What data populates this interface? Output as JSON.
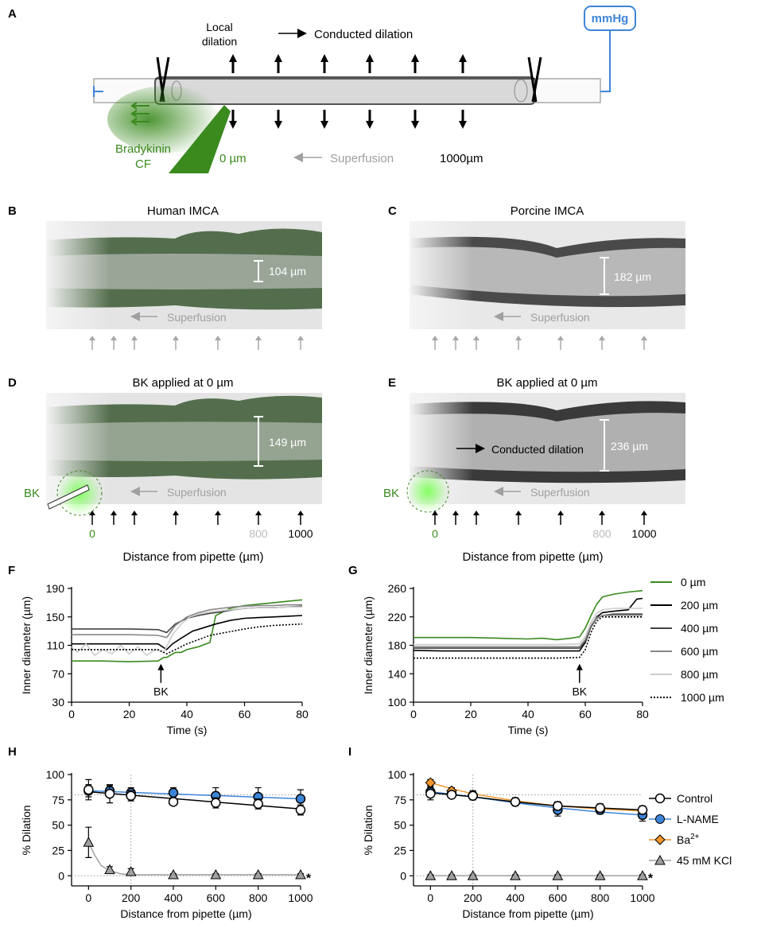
{
  "panel_letters": [
    "A",
    "B",
    "C",
    "D",
    "E",
    "F",
    "G",
    "H",
    "I"
  ],
  "panelA": {
    "local_dilation_line1": "Local",
    "local_dilation_line2": "dilation",
    "conducted_dilation": "Conducted dilation",
    "mmhg": "mmHg",
    "bradykinin": "Bradykinin",
    "cf": "CF",
    "zero_um": "0 µm",
    "superfusion": "Superfusion",
    "thousand_um": "1000µm"
  },
  "panelB": {
    "title": "Human IMCA",
    "measure": "104 µm",
    "superfusion": "Superfusion"
  },
  "panelC": {
    "title": "Porcine IMCA",
    "measure": "182 µm",
    "superfusion": "Superfusion"
  },
  "panelD": {
    "title": "BK applied at 0 µm",
    "measure": "149 µm",
    "superfusion": "Superfusion",
    "bk": "BK",
    "tick0": "0",
    "tick800": "800",
    "tick1000": "1000"
  },
  "panelE": {
    "title": "BK applied at 0 µm",
    "measure": "236 µm",
    "superfusion": "Superfusion",
    "bk": "BK",
    "conducted": "Conducted dilation",
    "tick0": "0",
    "tick800": "800",
    "tick1000": "1000"
  },
  "distance_label_DE": "Distance from pipette (µm)",
  "colors": {
    "green": "#3a8a1e",
    "gray": "#a0a0a0",
    "blue": "#3d85d8",
    "orange": "#f0962c",
    "lightgreen": "#6fcf50"
  },
  "chart_data": [
    {
      "id": "F",
      "type": "line",
      "xlabel": "Time (s)",
      "ylabel": "Inner diameter (µm)",
      "xlim": [
        0,
        80
      ],
      "ylim": [
        30,
        190
      ],
      "xticks": [
        0,
        20,
        40,
        60,
        80
      ],
      "yticks": [
        30,
        70,
        110,
        150,
        190
      ],
      "annotation": {
        "text": "BK",
        "x": 31
      },
      "series": [
        {
          "name": "0 µm",
          "color": "#3a8a1e",
          "dash": "",
          "x": [
            0,
            10,
            20,
            30,
            32,
            33,
            36,
            38,
            40,
            44,
            48,
            50,
            55,
            60,
            65,
            70,
            75,
            80
          ],
          "y": [
            88,
            88,
            87,
            88,
            93,
            93,
            100,
            100,
            104,
            108,
            114,
            152,
            162,
            166,
            168,
            170,
            172,
            174
          ]
        },
        {
          "name": "200 µm",
          "color": "#000000",
          "dash": "",
          "x": [
            0,
            10,
            20,
            30,
            33,
            35,
            38,
            42,
            46,
            50,
            55,
            60,
            65,
            70,
            75,
            80
          ],
          "y": [
            112,
            112,
            112,
            112,
            104,
            112,
            120,
            130,
            135,
            140,
            145,
            148,
            149,
            150,
            151,
            152
          ]
        },
        {
          "name": "400 µm",
          "color": "#444444",
          "dash": "",
          "x": [
            0,
            10,
            20,
            30,
            33,
            36,
            40,
            44,
            48,
            52,
            56,
            60,
            65,
            70,
            75,
            80
          ],
          "y": [
            133,
            133,
            133,
            132,
            128,
            140,
            148,
            152,
            155,
            157,
            160,
            162,
            163,
            163,
            164,
            165
          ]
        },
        {
          "name": "600 µm",
          "color": "#888888",
          "dash": "",
          "x": [
            0,
            10,
            20,
            30,
            33,
            36,
            40,
            44,
            48,
            52,
            56,
            60,
            65,
            70,
            75,
            80
          ],
          "y": [
            125,
            125,
            125,
            124,
            121,
            138,
            150,
            156,
            160,
            162,
            164,
            165,
            166,
            166,
            167,
            167
          ]
        },
        {
          "name": "800 µm",
          "color": "#cccccc",
          "dash": "",
          "x": [
            0,
            2,
            5,
            8,
            11,
            14,
            17,
            20,
            23,
            26,
            29,
            32,
            35,
            38,
            41,
            45,
            50,
            55,
            60,
            65,
            70,
            75,
            80
          ],
          "y": [
            108,
            100,
            112,
            96,
            104,
            98,
            110,
            98,
            108,
            96,
            104,
            100,
            125,
            140,
            150,
            155,
            158,
            160,
            162,
            163,
            163,
            164,
            164
          ]
        },
        {
          "name": "1000 µm",
          "color": "#000000",
          "dash": "2,2",
          "x": [
            0,
            10,
            20,
            30,
            33,
            36,
            40,
            44,
            48,
            52,
            56,
            60,
            65,
            70,
            75,
            80
          ],
          "y": [
            104,
            104,
            104,
            104,
            98,
            104,
            112,
            118,
            124,
            127,
            130,
            133,
            136,
            138,
            139,
            140
          ]
        }
      ]
    },
    {
      "id": "G",
      "type": "line",
      "xlabel": "Time (s)",
      "ylabel": "Inner diameter (µm)",
      "xlim": [
        0,
        80
      ],
      "ylim": [
        100,
        260
      ],
      "xticks": [
        0,
        20,
        40,
        60,
        80
      ],
      "yticks": [
        100,
        140,
        180,
        220,
        260
      ],
      "annotation": {
        "text": "BK",
        "x": 58
      },
      "series": [
        {
          "name": "0 µm",
          "color": "#3a8a1e",
          "dash": "",
          "x": [
            0,
            10,
            20,
            30,
            40,
            45,
            50,
            55,
            58,
            60,
            62,
            64,
            66,
            70,
            75,
            80
          ],
          "y": [
            191,
            191,
            191,
            190,
            189,
            190,
            188,
            190,
            192,
            204,
            222,
            238,
            248,
            252,
            255,
            257
          ]
        },
        {
          "name": "200 µm",
          "color": "#000000",
          "dash": "",
          "x": [
            0,
            10,
            20,
            30,
            40,
            50,
            58,
            60,
            62,
            64,
            66,
            70,
            75,
            78,
            80
          ],
          "y": [
            173,
            172,
            172,
            172,
            172,
            172,
            172,
            184,
            206,
            220,
            226,
            228,
            230,
            245,
            246
          ]
        },
        {
          "name": "400 µm",
          "color": "#444444",
          "dash": "",
          "x": [
            0,
            10,
            20,
            30,
            40,
            50,
            58,
            60,
            62,
            64,
            66,
            70,
            75,
            80
          ],
          "y": [
            176,
            176,
            176,
            176,
            176,
            176,
            176,
            186,
            206,
            218,
            222,
            224,
            224,
            224
          ]
        },
        {
          "name": "600 µm",
          "color": "#888888",
          "dash": "",
          "x": [
            0,
            10,
            20,
            30,
            40,
            50,
            58,
            60,
            62,
            64,
            66,
            70,
            75,
            80
          ],
          "y": [
            178,
            178,
            178,
            178,
            178,
            178,
            178,
            188,
            208,
            219,
            222,
            222,
            222,
            222
          ]
        },
        {
          "name": "800 µm",
          "color": "#cccccc",
          "dash": "",
          "x": [
            0,
            10,
            20,
            30,
            40,
            50,
            58,
            60,
            62,
            64,
            66,
            70,
            75,
            80
          ],
          "y": [
            181,
            181,
            181,
            181,
            181,
            181,
            182,
            192,
            212,
            225,
            230,
            232,
            232,
            232
          ]
        },
        {
          "name": "1000 µm",
          "color": "#000000",
          "dash": "2,2",
          "x": [
            0,
            10,
            20,
            30,
            40,
            50,
            58,
            60,
            62,
            64,
            66,
            70,
            75,
            80
          ],
          "y": [
            162,
            162,
            162,
            162,
            162,
            162,
            163,
            174,
            198,
            214,
            220,
            220,
            220,
            220
          ]
        }
      ]
    },
    {
      "id": "H",
      "type": "scatter",
      "xlabel": "Distance from pipette (µm)",
      "ylabel": "% Dilation",
      "xlim": [
        -80,
        1000
      ],
      "ylim": [
        -10,
        100
      ],
      "xticks": [
        0,
        200,
        400,
        600,
        800,
        1000
      ],
      "yticks": [
        0,
        25,
        50,
        75,
        100
      ],
      "ref_hline": 80,
      "ref_vline": 200,
      "star": "*",
      "series": [
        {
          "name": "L-NAME",
          "color": "#3d85d8",
          "marker": "circle",
          "x": [
            0,
            100,
            200,
            400,
            600,
            800,
            1000
          ],
          "y": [
            84,
            84,
            82,
            82,
            79,
            78,
            76
          ],
          "err": [
            6,
            5,
            5,
            5,
            8,
            9,
            9
          ],
          "fit": [
            [
              0,
              84
            ],
            [
              1000,
              76
            ]
          ]
        },
        {
          "name": "Ba2+",
          "color": "#f0962c",
          "marker": "diamond",
          "x": [],
          "y": [],
          "err": []
        },
        {
          "name": "45 mM KCl",
          "color": "#a0a0a0",
          "marker": "triangle",
          "x": [
            0,
            100,
            200,
            400,
            600,
            800,
            1000
          ],
          "y": [
            33,
            6,
            4,
            1,
            1,
            1,
            1
          ],
          "err": [
            15,
            3,
            3,
            1,
            1,
            1,
            1
          ],
          "fit": [
            [
              0,
              33
            ],
            [
              30,
              20
            ],
            [
              60,
              10
            ],
            [
              100,
              5
            ],
            [
              150,
              2
            ],
            [
              200,
              1
            ],
            [
              1000,
              1
            ]
          ]
        },
        {
          "name": "Control",
          "color": "#ffffff",
          "marker": "circle",
          "x": [
            0,
            100,
            200,
            400,
            600,
            800,
            1000
          ],
          "y": [
            85,
            81,
            79,
            73,
            72,
            71,
            65
          ],
          "err": [
            10,
            9,
            5,
            3,
            5,
            5,
            5
          ],
          "fit": [
            [
              0,
              83
            ],
            [
              1000,
              66
            ]
          ]
        }
      ]
    },
    {
      "id": "I",
      "type": "scatter",
      "xlabel": "Distance from pipette (µm)",
      "ylabel": "% Dilation",
      "xlim": [
        -80,
        1000
      ],
      "ylim": [
        -10,
        100
      ],
      "xticks": [
        0,
        200,
        400,
        600,
        800,
        1000
      ],
      "yticks": [
        0,
        25,
        50,
        75,
        100
      ],
      "ref_hline": 80,
      "ref_vline": 200,
      "star": "*",
      "series": [
        {
          "name": "L-NAME",
          "color": "#3d85d8",
          "marker": "circle",
          "x": [
            0,
            100,
            200,
            400,
            600,
            800,
            1000
          ],
          "y": [
            83,
            81,
            79,
            73,
            65,
            65,
            60
          ],
          "err": [
            5,
            4,
            4,
            4,
            6,
            4,
            6
          ],
          "fit": [
            [
              0,
              83
            ],
            [
              200,
              78
            ],
            [
              400,
              72
            ],
            [
              600,
              67
            ],
            [
              800,
              63
            ],
            [
              1000,
              60
            ]
          ]
        },
        {
          "name": "Ba2+",
          "color": "#f0962c",
          "marker": "diamond",
          "x": [
            0,
            100,
            200,
            400,
            600,
            800,
            1000
          ],
          "y": [
            92,
            84,
            80,
            73,
            69,
            67,
            65
          ],
          "err": [
            3,
            3,
            4,
            4,
            4,
            4,
            4
          ],
          "fit": [
            [
              0,
              92
            ],
            [
              100,
              86
            ],
            [
              200,
              81
            ],
            [
              400,
              74
            ],
            [
              600,
              69
            ],
            [
              800,
              66
            ],
            [
              1000,
              64
            ]
          ]
        },
        {
          "name": "45 mM KCl",
          "color": "#a0a0a0",
          "marker": "triangle",
          "x": [
            0,
            100,
            200,
            400,
            600,
            800,
            1000
          ],
          "y": [
            0,
            0,
            0,
            0,
            0,
            0,
            0
          ],
          "err": [
            1,
            1,
            1,
            1,
            1,
            1,
            1
          ],
          "fit": [
            [
              0,
              0
            ],
            [
              1000,
              0
            ]
          ]
        },
        {
          "name": "Control",
          "color": "#ffffff",
          "marker": "circle",
          "x": [
            0,
            100,
            200,
            400,
            600,
            800,
            1000
          ],
          "y": [
            81,
            80,
            79,
            73,
            69,
            67,
            65
          ],
          "err": [
            6,
            3,
            4,
            3,
            4,
            3,
            3
          ],
          "fit": [
            [
              0,
              82
            ],
            [
              200,
              78
            ],
            [
              400,
              73
            ],
            [
              600,
              69
            ],
            [
              800,
              67
            ],
            [
              1000,
              65
            ]
          ]
        }
      ]
    }
  ],
  "legend_FG": [
    "0 µm",
    "200 µm",
    "400 µm",
    "600 µm",
    "800 µm",
    "1000 µm"
  ],
  "legend_HI": [
    "Control",
    "L-NAME",
    "Ba",
    "45 mM KCl"
  ],
  "legend_HI_sup": "2+"
}
